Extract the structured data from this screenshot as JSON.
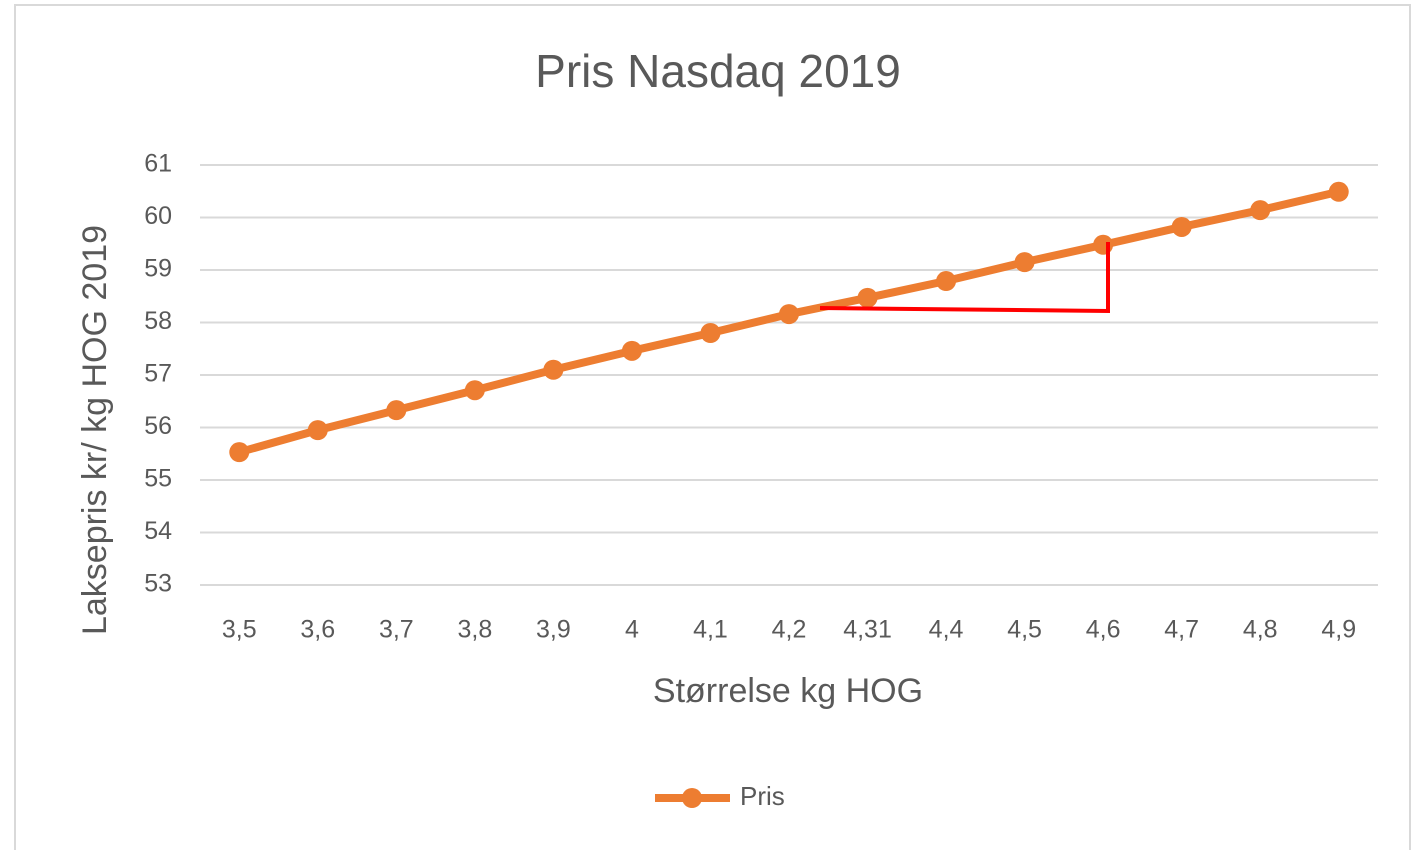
{
  "chart_data": {
    "type": "line",
    "title": "Pris Nasdaq 2019",
    "x_label": "Størrelse kg HOG",
    "y_label": "Laksepris kr/ kg HOG 2019",
    "categories": [
      "3,5",
      "3,6",
      "3,7",
      "3,8",
      "3,9",
      "4",
      "4,1",
      "4,2",
      "4,31",
      "4,4",
      "4,5",
      "4,6",
      "4,7",
      "4,8",
      "4,9"
    ],
    "series": [
      {
        "name": "Pris",
        "color": "#ed7d31",
        "values": [
          55.53,
          55.95,
          56.33,
          56.71,
          57.1,
          57.46,
          57.8,
          58.16,
          58.47,
          58.79,
          59.15,
          59.48,
          59.82,
          60.14,
          60.49
        ]
      }
    ],
    "ylim": [
      53,
      61
    ],
    "yticks": [
      53,
      54,
      55,
      56,
      57,
      58,
      59,
      60,
      61
    ],
    "grid": true,
    "legend": "bottom"
  }
}
